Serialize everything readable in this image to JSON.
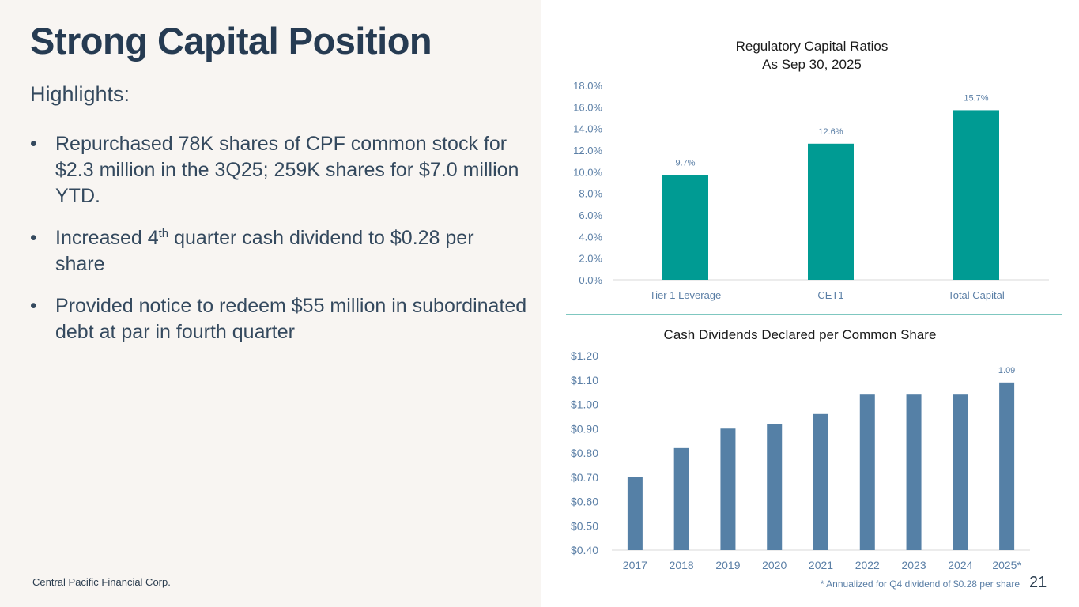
{
  "slide": {
    "title": "Strong Capital Position",
    "subtitle": "Highlights:",
    "bullets": {
      "b1": "Repurchased 78K shares of CPF common stock for $2.3 million in the 3Q25; 259K shares for $7.0 million YTD.",
      "b2_pre": "Increased 4",
      "b2_sup": "th",
      "b2_post": " quarter cash dividend to $0.28 per share",
      "b3": "Provided notice to redeem $55 million in subordinated debt at par in fourth quarter"
    },
    "bullet_glyph": "•",
    "footer": "Central Pacific Financial Corp.",
    "footnote": "* Annualized for Q4 dividend of $0.28 per share",
    "page_number": "21"
  },
  "colors": {
    "teal_bar": "#009b93",
    "blue_bar": "#5580a6",
    "axis_text": "#5b7fa6",
    "title_text": "#263b52"
  },
  "chart_data": [
    {
      "type": "bar",
      "title_line1": "Regulatory Capital Ratios",
      "title_line2": "As Sep 30, 2025",
      "categories": [
        "Tier 1 Leverage",
        "CET1",
        "Total Capital"
      ],
      "values": [
        9.7,
        12.6,
        15.7
      ],
      "value_labels": [
        "9.7%",
        "12.6%",
        "15.7%"
      ],
      "ylim": [
        0,
        18
      ],
      "yticks": [
        0,
        2,
        4,
        6,
        8,
        10,
        12,
        14,
        16,
        18
      ],
      "ytick_labels": [
        "0.0%",
        "2.0%",
        "4.0%",
        "6.0%",
        "8.0%",
        "10.0%",
        "12.0%",
        "14.0%",
        "16.0%",
        "18.0%"
      ],
      "xlabel": "",
      "ylabel": "",
      "grid": false
    },
    {
      "type": "bar",
      "title": "Cash Dividends Declared per Common Share",
      "categories": [
        "2017",
        "2018",
        "2019",
        "2020",
        "2021",
        "2022",
        "2023",
        "2024",
        "2025*"
      ],
      "values": [
        0.7,
        0.82,
        0.9,
        0.92,
        0.96,
        1.04,
        1.04,
        1.04,
        1.09
      ],
      "data_labels": [
        "",
        "",
        "",
        "",
        "",
        "",
        "",
        "",
        "1.09"
      ],
      "ylim": [
        0.4,
        1.2
      ],
      "yticks": [
        0.4,
        0.5,
        0.6,
        0.7,
        0.8,
        0.9,
        1.0,
        1.1,
        1.2
      ],
      "ytick_labels": [
        "$0.40",
        "$0.50",
        "$0.60",
        "$0.70",
        "$0.80",
        "$0.90",
        "$1.00",
        "$1.10",
        "$1.20"
      ],
      "xlabel": "",
      "ylabel": "",
      "grid": false
    }
  ]
}
